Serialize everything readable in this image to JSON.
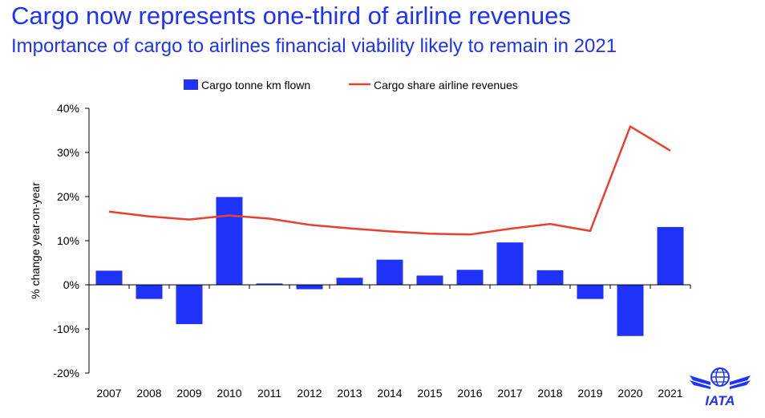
{
  "header": {
    "title": "Cargo now represents one-third of airline revenues",
    "subtitle": "Importance of cargo to airlines financial viability likely to remain in 2021"
  },
  "logo": {
    "text": "IATA"
  },
  "colors": {
    "accent": "#1e32fa",
    "bar": "#1e32fa",
    "line": "#e8412f"
  },
  "chart_data": {
    "type": "bar",
    "categories": [
      "2007",
      "2008",
      "2009",
      "2010",
      "2011",
      "2012",
      "2013",
      "2014",
      "2015",
      "2016",
      "2017",
      "2018",
      "2019",
      "2020",
      "2021"
    ],
    "series": [
      {
        "name": "Cargo tonne km flown",
        "type": "bar",
        "values": [
          3.2,
          -3.2,
          -8.9,
          19.9,
          0.3,
          -1.0,
          1.6,
          5.7,
          2.1,
          3.4,
          9.6,
          3.3,
          -3.2,
          -11.6,
          13.1
        ]
      },
      {
        "name": "Cargo share airline revenues",
        "type": "line",
        "values": [
          16.6,
          15.5,
          14.8,
          15.7,
          15.0,
          13.6,
          12.8,
          12.1,
          11.6,
          11.4,
          12.7,
          13.8,
          12.2,
          35.9,
          30.4
        ]
      }
    ],
    "xlabel": "",
    "ylabel": "% change year-on-year",
    "ylim": [
      -20,
      40
    ],
    "yticks": [
      "-20%",
      "-10%",
      "0%",
      "10%",
      "20%",
      "30%",
      "40%"
    ],
    "legend_position": "top",
    "grid": false
  }
}
